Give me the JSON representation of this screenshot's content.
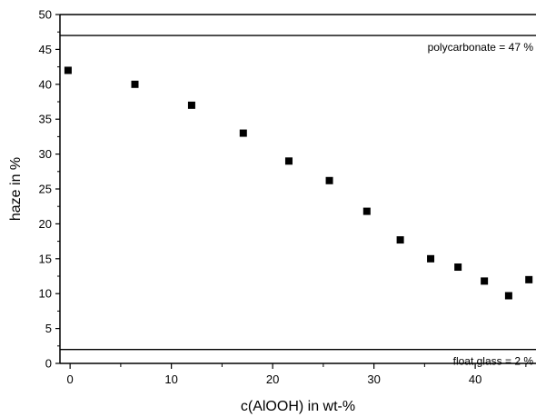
{
  "chart_data": {
    "type": "scatter",
    "xlabel": "c(AlOOH) in wt-%",
    "ylabel": "haze in %",
    "xlim": [
      -1,
      46
    ],
    "ylim": [
      0,
      50
    ],
    "x_ticks": [
      0,
      10,
      20,
      30,
      40
    ],
    "y_ticks": [
      0,
      5,
      10,
      15,
      20,
      25,
      30,
      35,
      40,
      45,
      50
    ],
    "grid": false,
    "legend": "none",
    "marker": "square",
    "marker_color": "#000000",
    "series": [
      {
        "points": [
          {
            "x": -0.2,
            "y": 42.0
          },
          {
            "x": 6.4,
            "y": 40.0
          },
          {
            "x": 12.0,
            "y": 37.0
          },
          {
            "x": 17.1,
            "y": 33.0
          },
          {
            "x": 21.6,
            "y": 29.0
          },
          {
            "x": 25.6,
            "y": 26.2
          },
          {
            "x": 29.3,
            "y": 21.8
          },
          {
            "x": 32.6,
            "y": 17.7
          },
          {
            "x": 35.6,
            "y": 15.0
          },
          {
            "x": 38.3,
            "y": 13.8
          },
          {
            "x": 40.9,
            "y": 11.8
          },
          {
            "x": 43.3,
            "y": 9.7
          },
          {
            "x": 45.3,
            "y": 12.0
          }
        ]
      }
    ],
    "reference_lines": [
      {
        "y": 47,
        "label": "polycarbonate = 47 %"
      },
      {
        "y": 2,
        "label": "float glass = 2 %"
      }
    ]
  }
}
